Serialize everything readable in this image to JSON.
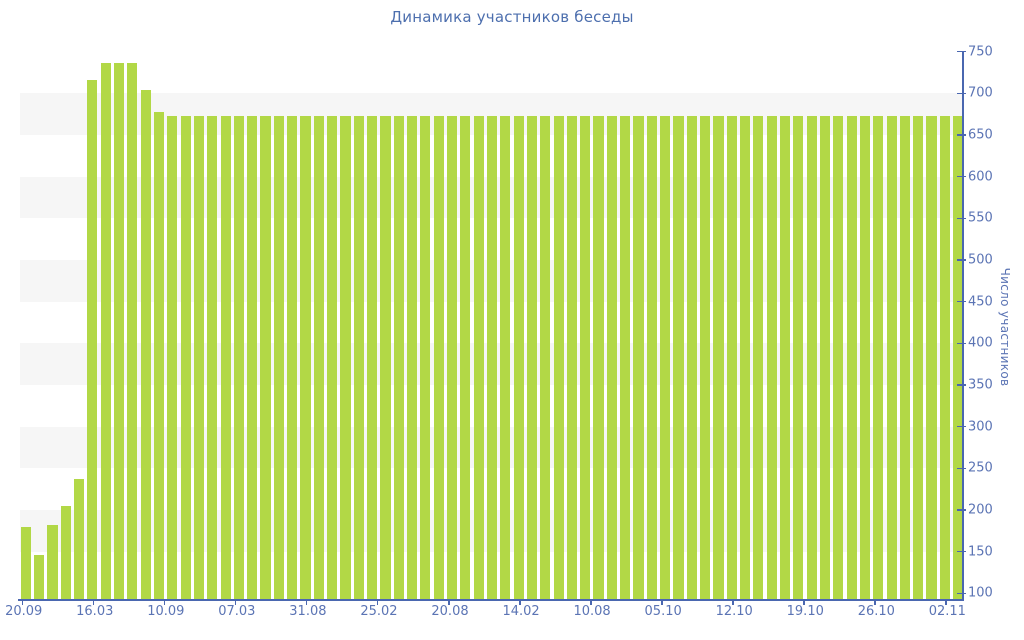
{
  "title": "Динамика участников беседы",
  "y_axis": {
    "title": "Число участников"
  },
  "colors": {
    "bar": "#b2d846",
    "axis": "#4a67b0",
    "tick_label": "#5b74b4",
    "title": "#4d6fae",
    "band": "#f6f6f6"
  },
  "chart_data": {
    "type": "bar",
    "title": "Динамика участников беседы",
    "xlabel": "",
    "ylabel": "Число участников",
    "ylim": [
      100,
      750
    ],
    "y_ticks": [
      100,
      150,
      200,
      250,
      300,
      350,
      400,
      450,
      500,
      550,
      600,
      650,
      700,
      750
    ],
    "x_tick_labels": [
      "20.09",
      "16.03",
      "10.09",
      "07.03",
      "31.08",
      "25.02",
      "20.08",
      "14.02",
      "10.08",
      "05.10",
      "12.10",
      "19.10",
      "26.10",
      "02.11"
    ],
    "grid": "horizontal zebra bands every 50 units, no vertical gridlines",
    "legend": null,
    "values": [
      179,
      146,
      182,
      205,
      237,
      716,
      736,
      736,
      736,
      704,
      678,
      673,
      673,
      673,
      673,
      673,
      673,
      673,
      673,
      673,
      673,
      673,
      673,
      673,
      673,
      673,
      673,
      673,
      673,
      673,
      673,
      673,
      673,
      673,
      673,
      673,
      673,
      673,
      673,
      673,
      673,
      673,
      673,
      673,
      673,
      673,
      673,
      673,
      673,
      673,
      673,
      673,
      673,
      673,
      673,
      673,
      673,
      673,
      673,
      673,
      673,
      673,
      673,
      673,
      673,
      673,
      673,
      673,
      673,
      673,
      673
    ]
  }
}
